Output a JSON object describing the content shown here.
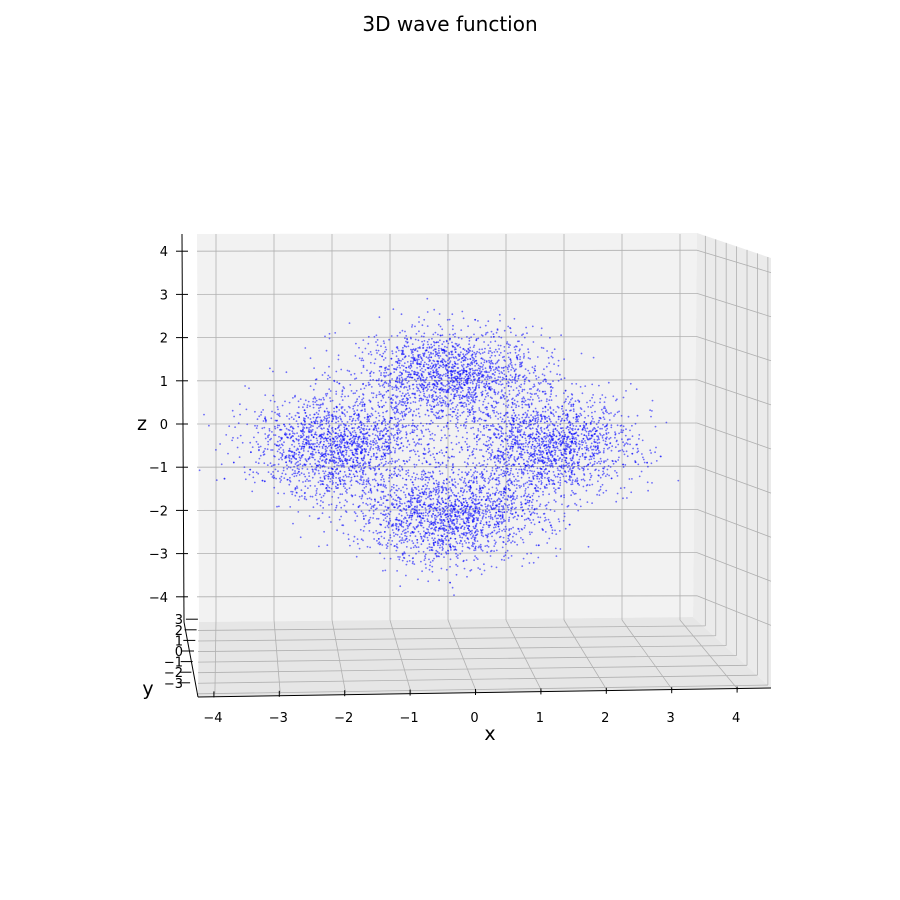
{
  "chart_data": {
    "type": "scatter",
    "projection": "3d",
    "title": "3D wave function",
    "xlabel": "x",
    "ylabel": "y",
    "zlabel": "z",
    "xlim": [
      -4.3,
      4.3
    ],
    "ylim": [
      -3.3,
      3.8
    ],
    "zlim": [
      -4.4,
      4.4
    ],
    "x_ticks": [
      -4,
      -3,
      -2,
      -1,
      0,
      1,
      2,
      3,
      4
    ],
    "y_ticks": [
      -3,
      -2,
      -1,
      0,
      1,
      2,
      3
    ],
    "z_ticks": [
      -4,
      -3,
      -2,
      -1,
      0,
      1,
      2,
      3,
      4
    ],
    "grid": true,
    "marker_color": "#0000ff",
    "marker_size": "small",
    "view": "near front view (x-z plane), slight elevation",
    "series": [
      {
        "lobes": [
          {
            "x": 0.0,
            "z": 1.1,
            "spread_x": 0.8,
            "spread_z": 0.55
          },
          {
            "x": 0.0,
            "z": -2.1,
            "spread_x": 0.8,
            "spread_z": 0.55
          },
          {
            "x": -1.9,
            "z": -0.5,
            "spread_x": 0.75,
            "spread_z": 0.6
          },
          {
            "x": 1.7,
            "z": -0.5,
            "spread_x": 0.75,
            "spread_z": 0.6
          }
        ]
      }
    ]
  }
}
